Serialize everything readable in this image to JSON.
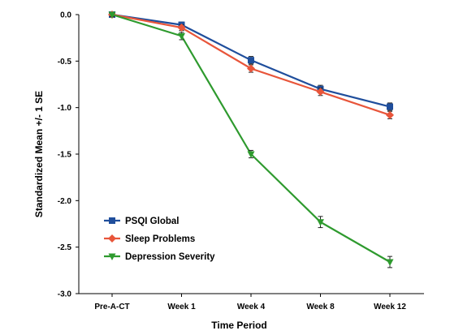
{
  "chart_data": {
    "type": "line",
    "title": "",
    "xlabel": "Time Period",
    "ylabel": "Standardized Mean +/- 1 SE",
    "categories": [
      "Pre-A-CT",
      "Week 1",
      "Week 4",
      "Week 8",
      "Week 12"
    ],
    "ylim": [
      -3.0,
      0.0
    ],
    "yticks": [
      0.0,
      -0.5,
      -1.0,
      -1.5,
      -2.0,
      -2.5,
      -3.0
    ],
    "ytick_labels": [
      "0.0",
      "-0.5",
      "-1.0",
      "-1.5",
      "-2.0",
      "-2.5",
      "-3.0"
    ],
    "grid": false,
    "legend_position": "bottom-left",
    "series": [
      {
        "name": "PSQI Global",
        "color": "#1f4e9c",
        "marker": "square",
        "values": [
          0.0,
          -0.11,
          -0.49,
          -0.8,
          -0.99
        ],
        "se": [
          0.02,
          0.03,
          0.04,
          0.04,
          0.04
        ]
      },
      {
        "name": "Sleep Problems",
        "color": "#e8553a",
        "marker": "diamond",
        "values": [
          0.0,
          -0.14,
          -0.58,
          -0.83,
          -1.08
        ],
        "se": [
          0.02,
          0.03,
          0.04,
          0.04,
          0.04
        ]
      },
      {
        "name": "Depression Severity",
        "color": "#2e9a2e",
        "marker": "triangle-down",
        "values": [
          0.0,
          -0.23,
          -1.5,
          -2.23,
          -2.66
        ],
        "se": [
          0.02,
          0.04,
          0.04,
          0.06,
          0.06
        ]
      }
    ]
  }
}
